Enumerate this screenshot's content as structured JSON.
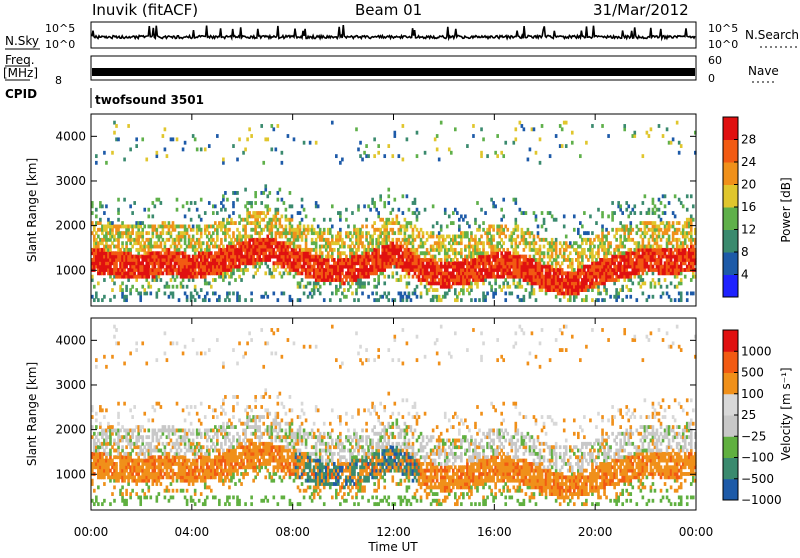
{
  "header": {
    "station": "Inuvik (fitACF)",
    "beam": "Beam 01",
    "date": "31/Mar/2012"
  },
  "panels": {
    "nsky_label": "N.Sky",
    "nsky_ticks": [
      "10^5",
      "10^0"
    ],
    "nsearch_label": "N.Search",
    "nsearch_ticks": [
      "10^5",
      "10^0"
    ],
    "freq_label": "Freq.",
    "freq_unit": "[MHz]",
    "freq_ticks": [
      "",
      "8"
    ],
    "nave_label": "Nave",
    "nave_ticks": [
      "60",
      "0"
    ],
    "cpid_label": "CPID",
    "cpid_value": "twofsound 3501"
  },
  "x_axis": {
    "label": "Time UT",
    "ticks": [
      "00:00",
      "04:00",
      "08:00",
      "12:00",
      "16:00",
      "20:00",
      "00:00"
    ]
  },
  "colors": {
    "power": [
      "#1f22ff",
      "#1d5aa8",
      "#3a8a6e",
      "#5fb04a",
      "#e0c62d",
      "#f0901a",
      "#f25a12",
      "#e01010"
    ],
    "velocity": [
      "#e01010",
      "#f25a12",
      "#f0901a",
      "#d8d8d8",
      "#c8c8c8",
      "#60b040",
      "#3a8a6e",
      "#1d5aa8"
    ]
  },
  "chart_data": [
    {
      "type": "heatmap",
      "name": "Power",
      "xlabel": "Time UT",
      "ylabel": "Slant Range [km]",
      "xlim": [
        0,
        24
      ],
      "ylim": [
        200,
        4500
      ],
      "yticks": [
        "1000",
        "2000",
        "3000",
        "4000"
      ],
      "colorbar_label": "Power [dB]",
      "colorbar_ticks": [
        "4",
        "8",
        "12",
        "16",
        "20",
        "24",
        "28"
      ],
      "colorbar_range": [
        0,
        30
      ],
      "main_band_center_km": [
        [
          0,
          1200
        ],
        [
          1,
          1100
        ],
        [
          2,
          1050
        ],
        [
          3,
          1150
        ],
        [
          4,
          1050
        ],
        [
          5,
          1150
        ],
        [
          6,
          1350
        ],
        [
          7,
          1450
        ],
        [
          8,
          1200
        ],
        [
          9,
          1000
        ],
        [
          10,
          950
        ],
        [
          11,
          1100
        ],
        [
          12,
          1350
        ],
        [
          13,
          1000
        ],
        [
          14,
          850
        ],
        [
          15,
          950
        ],
        [
          16,
          1100
        ],
        [
          17,
          1050
        ],
        [
          18,
          800
        ],
        [
          19,
          650
        ],
        [
          20,
          900
        ],
        [
          21,
          1050
        ],
        [
          22,
          1200
        ],
        [
          23,
          1150
        ],
        [
          24,
          1250
        ]
      ]
    },
    {
      "type": "heatmap",
      "name": "Velocity",
      "xlabel": "Time UT",
      "ylabel": "Slant Range [km]",
      "xlim": [
        0,
        24
      ],
      "ylim": [
        200,
        4500
      ],
      "yticks": [
        "1000",
        "2000",
        "3000",
        "4000"
      ],
      "colorbar_label": "Velocity [m s⁻¹]",
      "colorbar_ticks": [
        "1000",
        "500",
        "100",
        "25",
        "−25",
        "−100",
        "−500",
        "−1000"
      ]
    }
  ]
}
